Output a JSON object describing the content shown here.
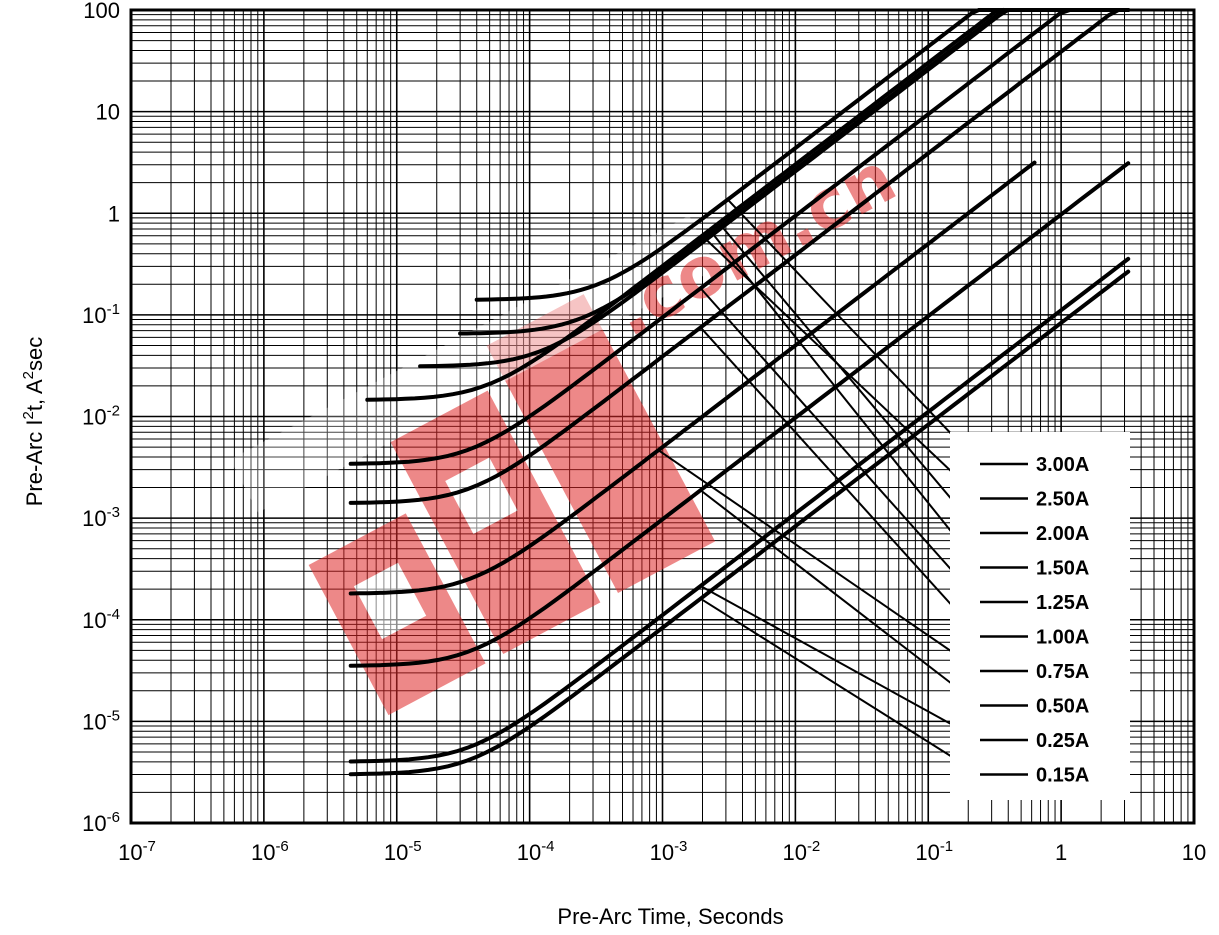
{
  "chart_data": {
    "type": "line",
    "xlabel": "Pre-Arc Time, Seconds",
    "ylabel_parts": [
      "Pre-Arc I",
      "2",
      "t, A",
      "2",
      "sec"
    ],
    "x_scale": "log",
    "y_scale": "log",
    "xlim": [
      1e-07,
      10
    ],
    "ylim": [
      1e-06,
      100
    ],
    "grid": true,
    "x_ticks": [
      {
        "value": 1e-07,
        "base": "10",
        "exp": "-7"
      },
      {
        "value": 1e-06,
        "base": "10",
        "exp": "-6"
      },
      {
        "value": 1e-05,
        "base": "10",
        "exp": "-5"
      },
      {
        "value": 0.0001,
        "base": "10",
        "exp": "-4"
      },
      {
        "value": 0.001,
        "base": "10",
        "exp": "-3"
      },
      {
        "value": 0.01,
        "base": "10",
        "exp": "-2"
      },
      {
        "value": 0.1,
        "base": "10",
        "exp": "-1"
      },
      {
        "value": 1,
        "base": "1",
        "exp": ""
      },
      {
        "value": 10,
        "base": "10",
        "exp": ""
      }
    ],
    "y_ticks": [
      {
        "value": 1e-06,
        "base": "10",
        "exp": "-6"
      },
      {
        "value": 1e-05,
        "base": "10",
        "exp": "-5"
      },
      {
        "value": 0.0001,
        "base": "10",
        "exp": "-4"
      },
      {
        "value": 0.001,
        "base": "10",
        "exp": "-3"
      },
      {
        "value": 0.01,
        "base": "10",
        "exp": "-2"
      },
      {
        "value": 0.1,
        "base": "10",
        "exp": "-1"
      },
      {
        "value": 1,
        "base": "1",
        "exp": ""
      },
      {
        "value": 10,
        "base": "10",
        "exp": ""
      },
      {
        "value": 100,
        "base": "100",
        "exp": ""
      }
    ],
    "legend_position": "lower-right",
    "series": [
      {
        "name": "3.00A",
        "t_start": 4e-05,
        "I2t_min": 0.14,
        "t_end": 0.63
      },
      {
        "name": "2.50A",
        "t_start": 3e-05,
        "I2t_min": 0.065,
        "t_end": 0.37
      },
      {
        "name": "2.00A",
        "t_start": 1.5e-05,
        "I2t_min": 0.031,
        "t_end": 1.7
      },
      {
        "name": "1.50A",
        "t_start": 6e-06,
        "I2t_min": 0.0145,
        "t_end": 3.2
      },
      {
        "name": "1.25A",
        "t_start": 4.5e-06,
        "I2t_min": 0.0034,
        "t_end": 3.2
      },
      {
        "name": "1.00A",
        "t_start": 4.5e-06,
        "I2t_min": 0.0014,
        "t_end": 3.2
      },
      {
        "name": "0.75A",
        "t_start": 4.5e-06,
        "I2t_min": 0.00018,
        "t_end": 0.63
      },
      {
        "name": "0.50A",
        "t_start": 4.5e-06,
        "I2t_min": 3.5e-05,
        "t_end": 3.2
      },
      {
        "name": "0.25A",
        "t_start": 4.5e-06,
        "I2t_min": 4e-06,
        "t_end": 3.2
      },
      {
        "name": "0.15A",
        "t_start": 4.5e-06,
        "I2t_min": 3e-06,
        "t_end": 3.2
      }
    ]
  },
  "watermark": {
    "text": ".com.cn",
    "color": "#e02828"
  }
}
